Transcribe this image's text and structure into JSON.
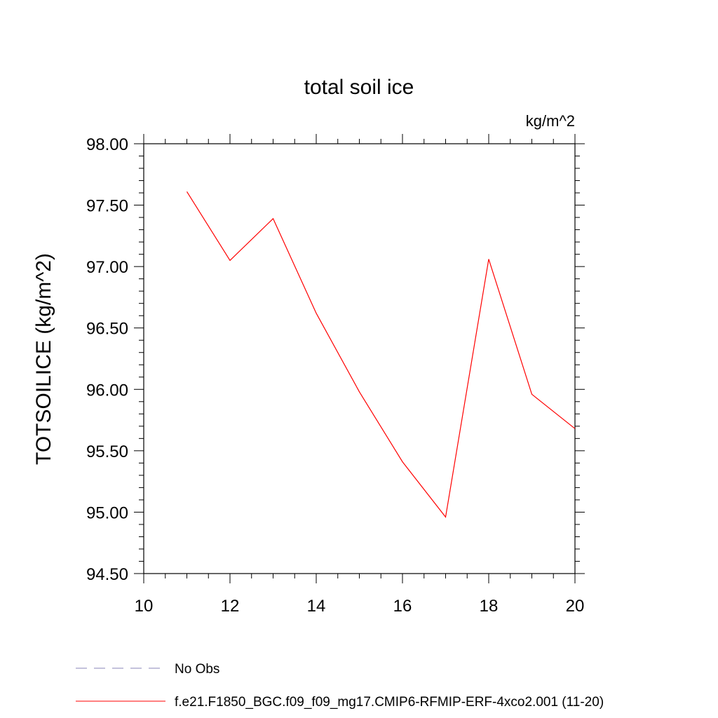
{
  "chart_data": {
    "type": "line",
    "title": "total soil ice",
    "units_label": "kg/m^2",
    "xlabel": "",
    "ylabel": "TOTSOILICE  (kg/m^2)",
    "xlim": [
      10,
      20
    ],
    "ylim": [
      94.5,
      98.0
    ],
    "x_ticks": [
      "10",
      "12",
      "14",
      "16",
      "18",
      "20"
    ],
    "y_ticks": [
      "94.50",
      "95.00",
      "95.50",
      "96.00",
      "96.50",
      "97.00",
      "97.50",
      "98.00"
    ],
    "grid": false,
    "legend_position": "bottom",
    "series": [
      {
        "name": "f.e21.F1850_BGC.f09_f09_mg17.CMIP6-RFMIP-ERF-4xco2.001 (11-20)",
        "color": "#ff0000",
        "line_style": "solid",
        "x": [
          11,
          12,
          13,
          14,
          15,
          16,
          17,
          18,
          19,
          20
        ],
        "y": [
          97.61,
          97.05,
          97.39,
          96.62,
          95.98,
          95.41,
          94.96,
          97.06,
          95.96,
          95.68
        ]
      }
    ],
    "legend": [
      {
        "label": "No Obs",
        "color": "#8a86b8",
        "line_style": "dashed"
      },
      {
        "label": "f.e21.F1850_BGC.f09_f09_mg17.CMIP6-RFMIP-ERF-4xco2.001 (11-20)",
        "color": "#ff0000",
        "line_style": "solid"
      }
    ]
  }
}
